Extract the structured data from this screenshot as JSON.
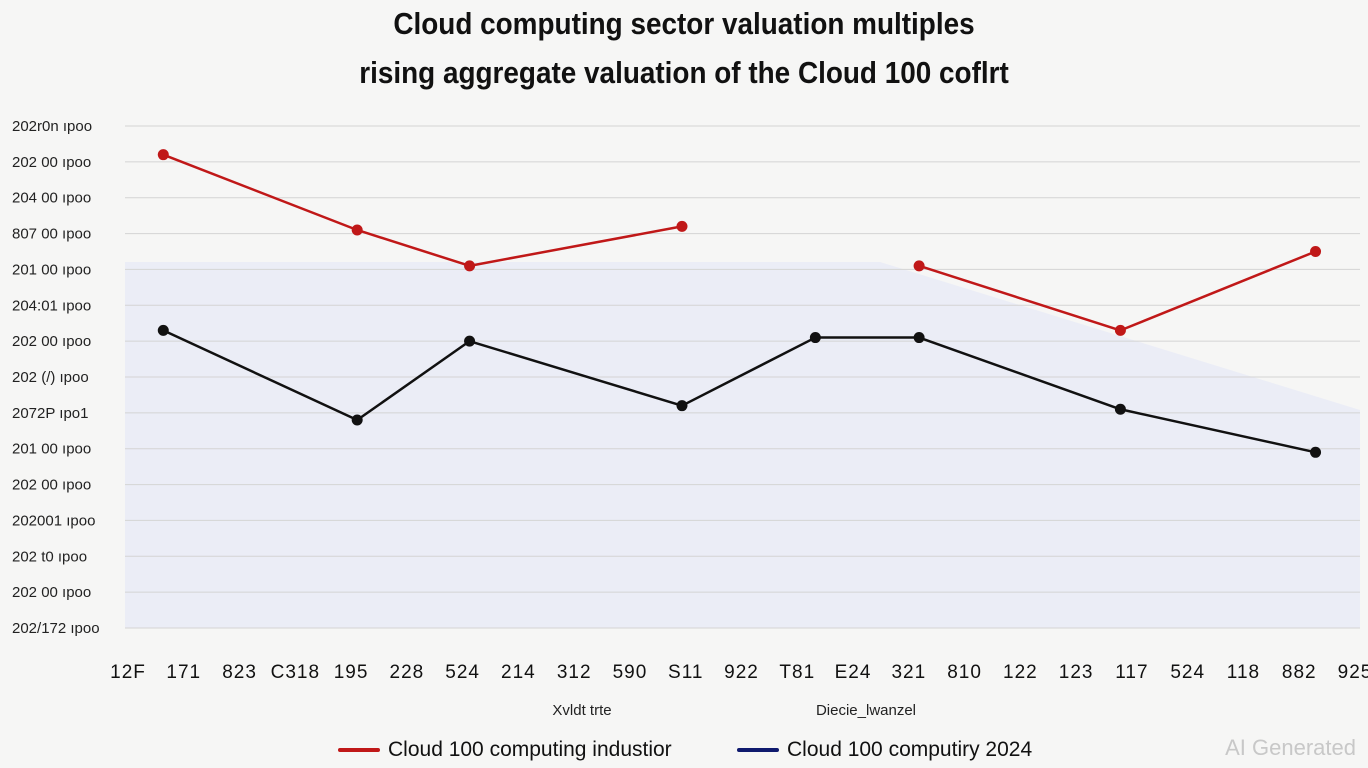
{
  "chart_data": {
    "type": "line",
    "title": "Cloud computing sector valuation multiples",
    "subtitle": "rising aggregate valuation of the Cloud 100 coflrt",
    "xlabel": "Xvldt trte",
    "xlabel2": "Diecie_lwanzel",
    "ylabel": "",
    "ytick_labels": [
      "202r0n ıpoo",
      "202 00 ıpoo",
      "204 00 ıpoo",
      "807 00 ıpoo",
      "201 00 ıpoo",
      "204:01 ıpoo",
      "202 00 ıpoo",
      "202 (/) ıpoo",
      "2072P ıpo1",
      "201 00 ıpoo",
      "202 00 ıpoo",
      "202001 ıpoo",
      "202 t0 ıpoo",
      "202 00 ıpoo",
      "202/172 ıpoo"
    ],
    "xtick_labels": [
      "12F",
      "171",
      "823",
      "C318",
      "195",
      "228",
      "524",
      "214",
      "312",
      "590",
      "S11",
      "922",
      "T81",
      "E24",
      "321",
      "810",
      "122",
      "123",
      "117",
      "524",
      "118",
      "882",
      "925"
    ],
    "ylim": [
      0,
      14
    ],
    "xlim": [
      0,
      100
    ],
    "grid": true,
    "legend_placement": "bottom",
    "series": [
      {
        "name": "Cloud 100 computing industior",
        "color": "#c01818",
        "segments": [
          [
            [
              3.1,
              13.2
            ],
            [
              18.8,
              11.1
            ],
            [
              27.9,
              10.1
            ],
            [
              45.1,
              11.2
            ]
          ],
          [
            [
              64.3,
              10.1
            ],
            [
              80.6,
              8.3
            ],
            [
              96.4,
              10.5
            ]
          ]
        ]
      },
      {
        "name": "Cloud 100 computiry 2024",
        "color": "#111111",
        "legend_color": "#0f1a6e",
        "segments": [
          [
            [
              3.1,
              8.3
            ],
            [
              18.8,
              5.8
            ],
            [
              27.9,
              8.0
            ],
            [
              45.1,
              6.2
            ],
            [
              55.9,
              8.1
            ],
            [
              64.3,
              8.1
            ],
            [
              80.6,
              6.1
            ],
            [
              96.4,
              4.9
            ]
          ]
        ]
      }
    ]
  },
  "watermark": "AI Generated"
}
